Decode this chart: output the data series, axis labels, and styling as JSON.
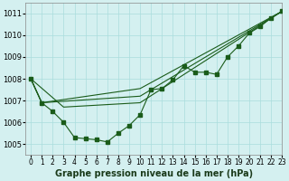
{
  "title": "Graphe pression niveau de la mer (hPa)",
  "xlabel_fontsize": 7,
  "bg_color": "#d4f0f0",
  "grid_color": "#aadddd",
  "line_color": "#1a5c1a",
  "xlim": [
    -0.5,
    23
  ],
  "ylim": [
    1004.5,
    1011.5
  ],
  "yticks": [
    1005,
    1006,
    1007,
    1008,
    1009,
    1010,
    1011
  ],
  "xticks": [
    0,
    1,
    2,
    3,
    4,
    5,
    6,
    7,
    8,
    9,
    10,
    11,
    12,
    13,
    14,
    15,
    16,
    17,
    18,
    19,
    20,
    21,
    22,
    23
  ],
  "series_main": {
    "x": [
      0,
      1,
      2,
      3,
      4,
      5,
      6,
      7,
      8,
      9,
      10,
      11,
      12,
      13,
      14,
      15,
      16,
      17,
      18,
      19,
      20,
      21,
      22,
      23
    ],
    "y": [
      1008.0,
      1006.9,
      1006.5,
      1006.0,
      1005.3,
      1005.25,
      1005.2,
      1005.1,
      1005.5,
      1005.85,
      1006.35,
      1007.5,
      1007.55,
      1007.95,
      1008.6,
      1008.3,
      1008.3,
      1008.2,
      1009.0,
      1009.5,
      1010.1,
      1010.4,
      1010.8,
      1011.1
    ]
  },
  "series_line1": {
    "x": [
      0,
      1,
      10,
      23
    ],
    "y": [
      1008.0,
      1006.9,
      1007.55,
      1011.1
    ]
  },
  "series_line2": {
    "x": [
      0,
      3,
      10,
      23
    ],
    "y": [
      1008.0,
      1006.7,
      1006.9,
      1011.1
    ]
  },
  "series_line3": {
    "x": [
      0,
      1,
      10,
      23
    ],
    "y": [
      1008.0,
      1006.9,
      1007.2,
      1011.1
    ]
  }
}
